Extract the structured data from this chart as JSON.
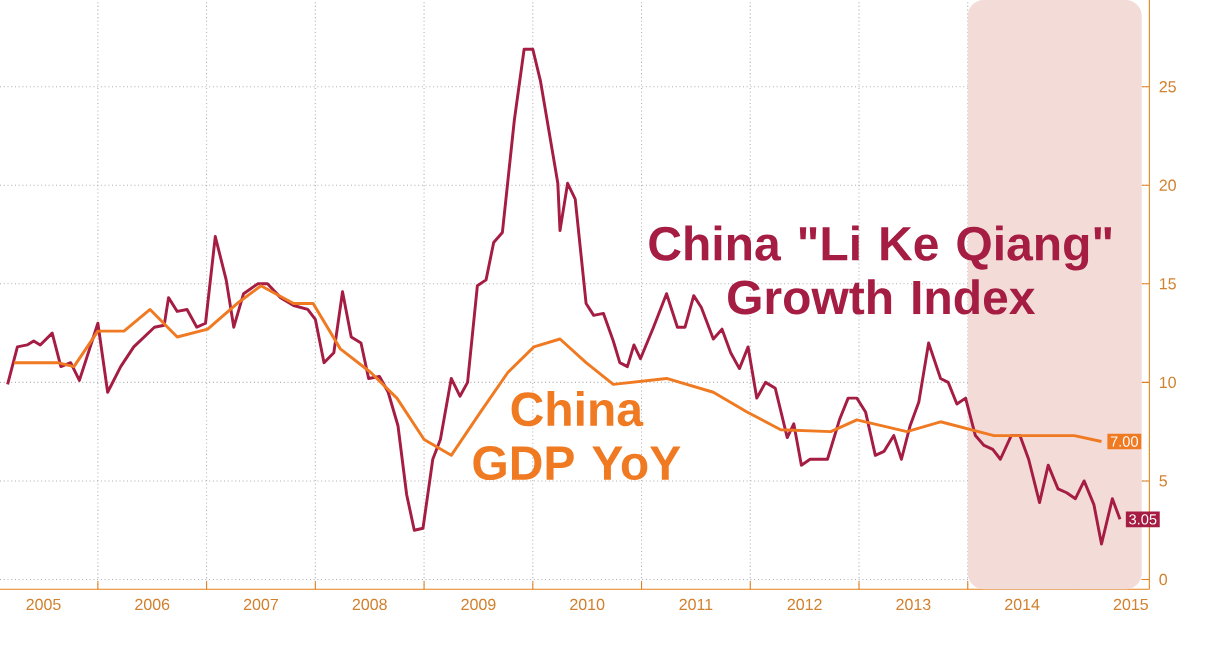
{
  "chart_data": {
    "type": "line",
    "xlim": [
      2005.1,
      2015.67
    ],
    "ylim": [
      -0.5,
      29.4
    ],
    "xticks": [
      {
        "value": 2005.5,
        "label": "2005"
      },
      {
        "value": 2006,
        "label": null
      },
      {
        "value": 2006.5,
        "label": "2006"
      },
      {
        "value": 2007,
        "label": null
      },
      {
        "value": 2007.5,
        "label": "2007"
      },
      {
        "value": 2008,
        "label": null
      },
      {
        "value": 2008.5,
        "label": "2008"
      },
      {
        "value": 2009,
        "label": null
      },
      {
        "value": 2009.5,
        "label": "2009"
      },
      {
        "value": 2010,
        "label": null
      },
      {
        "value": 2010.5,
        "label": "2010"
      },
      {
        "value": 2011,
        "label": null
      },
      {
        "value": 2011.5,
        "label": "2011"
      },
      {
        "value": 2012,
        "label": null
      },
      {
        "value": 2012.5,
        "label": "2012"
      },
      {
        "value": 2013,
        "label": null
      },
      {
        "value": 2013.5,
        "label": "2013"
      },
      {
        "value": 2014,
        "label": null
      },
      {
        "value": 2014.5,
        "label": "2014"
      },
      {
        "value": 2015,
        "label": null
      },
      {
        "value": 2015.5,
        "label": "2015"
      }
    ],
    "yticks": [
      0,
      5,
      10,
      15,
      20,
      25
    ],
    "grid": true,
    "line_style": "solid",
    "bands": [
      {
        "axis": "x",
        "from": 2014.0,
        "to": 2015.6,
        "color": "#f3dcd8"
      }
    ],
    "series": [
      {
        "name": "China \"Li Ke Qiang\" Growth Index",
        "color": "#a51d43",
        "x": [
          2005.17,
          2005.26,
          2005.35,
          2005.41,
          2005.47,
          2005.58,
          2005.66,
          2005.75,
          2005.83,
          2006.0,
          2006.09,
          2006.21,
          2006.33,
          2006.52,
          2006.61,
          2006.65,
          2006.73,
          2006.82,
          2006.91,
          2006.99,
          2007.08,
          2007.18,
          2007.25,
          2007.34,
          2007.47,
          2007.56,
          2007.68,
          2007.8,
          2007.93,
          2008.0,
          2008.08,
          2008.17,
          2008.25,
          2008.33,
          2008.42,
          2008.49,
          2008.59,
          2008.67,
          2008.76,
          2008.84,
          2008.91,
          2008.99,
          2009.08,
          2009.15,
          2009.25,
          2009.33,
          2009.4,
          2009.49,
          2009.57,
          2009.64,
          2009.72,
          2009.83,
          2009.92,
          2010.0,
          2010.07,
          2010.23,
          2010.25,
          2010.32,
          2010.39,
          2010.49,
          2010.56,
          2010.65,
          2010.74,
          2010.8,
          2010.87,
          2010.93,
          2010.99,
          2011.11,
          2011.23,
          2011.33,
          2011.4,
          2011.48,
          2011.55,
          2011.66,
          2011.74,
          2011.82,
          2011.9,
          2011.98,
          2012.06,
          2012.14,
          2012.23,
          2012.34,
          2012.4,
          2012.47,
          2012.55,
          2012.71,
          2012.82,
          2012.9,
          2012.98,
          2013.06,
          2013.15,
          2013.23,
          2013.32,
          2013.39,
          2013.47,
          2013.55,
          2013.64,
          2013.75,
          2013.82,
          2013.9,
          2013.98,
          2014.07,
          2014.15,
          2014.23,
          2014.3,
          2014.4,
          2014.48,
          2014.56,
          2014.66,
          2014.74,
          2014.83,
          2014.91,
          2014.99,
          2015.07,
          2015.16,
          2015.23,
          2015.33,
          2015.4
        ],
        "values": [
          9.9,
          11.8,
          11.9,
          12.1,
          11.9,
          12.5,
          10.8,
          11.0,
          10.1,
          13.0,
          9.5,
          10.8,
          11.8,
          12.8,
          12.9,
          14.3,
          13.6,
          13.7,
          12.8,
          13.0,
          17.4,
          15.2,
          12.8,
          14.5,
          15.0,
          15.0,
          14.3,
          13.9,
          13.7,
          13.2,
          11.0,
          11.5,
          14.6,
          12.3,
          12.0,
          10.2,
          10.3,
          9.5,
          7.8,
          4.3,
          2.5,
          2.6,
          6.1,
          7.1,
          10.2,
          9.3,
          10.0,
          14.9,
          15.2,
          17.1,
          17.6,
          23.3,
          26.9,
          26.9,
          25.3,
          20.1,
          17.7,
          20.1,
          19.3,
          14.0,
          13.4,
          13.5,
          12.1,
          11.0,
          10.8,
          11.9,
          11.2,
          12.8,
          14.5,
          12.8,
          12.8,
          14.4,
          13.8,
          12.2,
          12.7,
          11.5,
          10.7,
          11.8,
          9.2,
          10.0,
          9.7,
          7.2,
          7.9,
          5.8,
          6.1,
          6.1,
          8.1,
          9.2,
          9.2,
          8.5,
          6.3,
          6.5,
          7.3,
          6.1,
          7.8,
          9.0,
          12.0,
          10.2,
          10.0,
          8.9,
          9.2,
          7.3,
          6.8,
          6.6,
          6.1,
          7.3,
          7.3,
          6.1,
          3.9,
          5.8,
          4.6,
          4.4,
          4.1,
          5.0,
          3.8,
          1.8,
          4.1,
          3.05
        ],
        "value_labels": [
          null,
          null,
          null,
          null,
          null,
          null,
          null,
          null,
          null,
          null,
          null,
          null,
          null,
          null,
          null,
          null,
          null,
          null,
          null,
          null,
          null,
          null,
          null,
          null,
          null,
          null,
          null,
          null,
          null,
          null,
          null,
          null,
          null,
          null,
          null,
          null,
          null,
          null,
          null,
          null,
          null,
          null,
          null,
          null,
          null,
          null,
          null,
          null,
          null,
          null,
          null,
          null,
          null,
          null,
          null,
          null,
          null,
          null,
          null,
          null,
          null,
          null,
          null,
          null,
          null,
          null,
          null,
          null,
          null,
          null,
          null,
          null,
          null,
          null,
          null,
          null,
          null,
          null,
          null,
          null,
          null,
          null,
          null,
          null,
          null,
          null,
          null,
          null,
          null,
          null,
          null,
          null,
          null,
          null,
          null,
          null,
          null,
          null,
          null,
          null,
          null,
          null,
          null,
          null,
          null,
          null,
          null,
          null,
          null,
          null,
          null,
          null,
          null,
          null,
          null,
          null,
          null,
          "3.05"
        ]
      },
      {
        "name": "China GDP YoY",
        "color": "#f07a22",
        "x": [
          2005.23,
          2005.63,
          2005.78,
          2006.0,
          2006.24,
          2006.48,
          2006.73,
          2007.01,
          2007.28,
          2007.5,
          2007.8,
          2007.98,
          2008.23,
          2008.51,
          2008.75,
          2009.0,
          2009.25,
          2009.52,
          2009.77,
          2010.01,
          2010.25,
          2010.49,
          2010.74,
          2011.23,
          2011.66,
          2011.97,
          2012.28,
          2012.74,
          2012.98,
          2013.44,
          2013.75,
          2014.24,
          2014.67,
          2014.98,
          2015.23
        ],
        "values": [
          11.0,
          11.0,
          10.8,
          12.6,
          12.6,
          13.7,
          12.3,
          12.7,
          14.0,
          14.9,
          14.0,
          14.0,
          11.7,
          10.5,
          9.2,
          7.1,
          6.3,
          8.5,
          10.5,
          11.8,
          12.2,
          11.0,
          9.9,
          10.2,
          9.5,
          8.5,
          7.6,
          7.5,
          8.1,
          7.5,
          8.0,
          7.3,
          7.3,
          7.3,
          7.0
        ],
        "value_labels": [
          null,
          null,
          null,
          null,
          null,
          null,
          null,
          null,
          null,
          null,
          null,
          null,
          null,
          null,
          null,
          null,
          null,
          null,
          null,
          null,
          null,
          null,
          null,
          null,
          null,
          null,
          null,
          null,
          null,
          null,
          null,
          null,
          null,
          null,
          "7.00"
        ]
      }
    ]
  }
}
